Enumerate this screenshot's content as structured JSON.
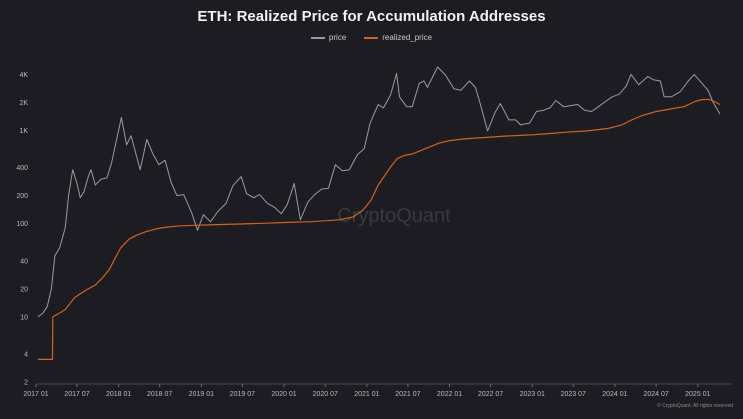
{
  "chart_data": {
    "type": "line",
    "title": "ETH: Realized Price for Accumulation Addresses",
    "y_scale": "log",
    "ylim": [
      2,
      6000
    ],
    "y_ticks": [
      {
        "value": 4000,
        "label": "4K"
      },
      {
        "value": 2000,
        "label": "2K"
      },
      {
        "value": 1000,
        "label": "1K"
      },
      {
        "value": 400,
        "label": "400"
      },
      {
        "value": 200,
        "label": "200"
      },
      {
        "value": 100,
        "label": "100"
      },
      {
        "value": 40,
        "label": "40"
      },
      {
        "value": 20,
        "label": "20"
      },
      {
        "value": 10,
        "label": "10"
      },
      {
        "value": 4,
        "label": "4"
      },
      {
        "value": 2,
        "label": "2"
      }
    ],
    "xlim": [
      "2017-01",
      "2025-06"
    ],
    "x_ticks": [
      {
        "value": "2017-01",
        "label": "2017 01"
      },
      {
        "value": "2017-07",
        "label": "2017 07"
      },
      {
        "value": "2018-01",
        "label": "2018 01"
      },
      {
        "value": "2018-07",
        "label": "2018 07"
      },
      {
        "value": "2019-01",
        "label": "2019 01"
      },
      {
        "value": "2019-07",
        "label": "2019 07"
      },
      {
        "value": "2020-01",
        "label": "2020 01"
      },
      {
        "value": "2020-07",
        "label": "2020 07"
      },
      {
        "value": "2021-01",
        "label": "2021 01"
      },
      {
        "value": "2021-07",
        "label": "2021 07"
      },
      {
        "value": "2022-01",
        "label": "2022 01"
      },
      {
        "value": "2022-07",
        "label": "2022 07"
      },
      {
        "value": "2023-01",
        "label": "2023 01"
      },
      {
        "value": "2023-07",
        "label": "2023 07"
      },
      {
        "value": "2024-01",
        "label": "2024 01"
      },
      {
        "value": "2024-07",
        "label": "2024 07"
      },
      {
        "value": "2025-01",
        "label": "2025 01"
      }
    ],
    "grid": false,
    "legend_position": "top-center",
    "series": [
      {
        "name": "price",
        "color": "#9a9aa0",
        "points": [
          [
            "2017-01-10",
            10
          ],
          [
            "2017-02-01",
            11
          ],
          [
            "2017-02-20",
            13
          ],
          [
            "2017-03-10",
            20
          ],
          [
            "2017-03-25",
            45
          ],
          [
            "2017-04-15",
            55
          ],
          [
            "2017-05-10",
            90
          ],
          [
            "2017-05-25",
            200
          ],
          [
            "2017-06-12",
            380
          ],
          [
            "2017-07-01",
            270
          ],
          [
            "2017-07-15",
            190
          ],
          [
            "2017-08-01",
            220
          ],
          [
            "2017-08-20",
            320
          ],
          [
            "2017-09-01",
            380
          ],
          [
            "2017-09-20",
            260
          ],
          [
            "2017-10-15",
            300
          ],
          [
            "2017-11-10",
            310
          ],
          [
            "2017-12-01",
            450
          ],
          [
            "2017-12-20",
            750
          ],
          [
            "2018-01-13",
            1380
          ],
          [
            "2018-02-05",
            700
          ],
          [
            "2018-02-25",
            880
          ],
          [
            "2018-03-15",
            600
          ],
          [
            "2018-04-06",
            380
          ],
          [
            "2018-05-05",
            800
          ],
          [
            "2018-06-01",
            560
          ],
          [
            "2018-06-28",
            430
          ],
          [
            "2018-07-25",
            480
          ],
          [
            "2018-08-20",
            280
          ],
          [
            "2018-09-15",
            200
          ],
          [
            "2018-10-15",
            205
          ],
          [
            "2018-11-20",
            130
          ],
          [
            "2018-12-15",
            85
          ],
          [
            "2019-01-10",
            125
          ],
          [
            "2019-02-10",
            105
          ],
          [
            "2019-03-15",
            135
          ],
          [
            "2019-04-20",
            165
          ],
          [
            "2019-05-20",
            255
          ],
          [
            "2019-06-26",
            320
          ],
          [
            "2019-07-20",
            210
          ],
          [
            "2019-08-20",
            190
          ],
          [
            "2019-09-15",
            205
          ],
          [
            "2019-10-20",
            165
          ],
          [
            "2019-11-20",
            150
          ],
          [
            "2019-12-20",
            128
          ],
          [
            "2020-01-15",
            160
          ],
          [
            "2020-02-15",
            270
          ],
          [
            "2020-03-13",
            110
          ],
          [
            "2020-04-15",
            170
          ],
          [
            "2020-05-15",
            205
          ],
          [
            "2020-06-15",
            235
          ],
          [
            "2020-07-15",
            240
          ],
          [
            "2020-08-15",
            430
          ],
          [
            "2020-09-15",
            370
          ],
          [
            "2020-10-15",
            380
          ],
          [
            "2020-11-20",
            550
          ],
          [
            "2020-12-20",
            640
          ],
          [
            "2021-01-15",
            1200
          ],
          [
            "2021-02-20",
            1900
          ],
          [
            "2021-03-15",
            1750
          ],
          [
            "2021-04-15",
            2400
          ],
          [
            "2021-05-12",
            4100
          ],
          [
            "2021-05-25",
            2300
          ],
          [
            "2021-06-25",
            1800
          ],
          [
            "2021-07-20",
            1800
          ],
          [
            "2021-08-20",
            3200
          ],
          [
            "2021-09-10",
            3400
          ],
          [
            "2021-09-25",
            2900
          ],
          [
            "2021-11-09",
            4800
          ],
          [
            "2021-12-15",
            3900
          ],
          [
            "2022-01-20",
            2800
          ],
          [
            "2022-02-20",
            2700
          ],
          [
            "2022-03-30",
            3400
          ],
          [
            "2022-04-25",
            2900
          ],
          [
            "2022-05-15",
            2000
          ],
          [
            "2022-06-18",
            990
          ],
          [
            "2022-07-20",
            1550
          ],
          [
            "2022-08-13",
            1950
          ],
          [
            "2022-09-20",
            1300
          ],
          [
            "2022-10-20",
            1300
          ],
          [
            "2022-11-10",
            1150
          ],
          [
            "2022-12-20",
            1200
          ],
          [
            "2023-01-20",
            1600
          ],
          [
            "2023-02-20",
            1650
          ],
          [
            "2023-03-20",
            1750
          ],
          [
            "2023-04-15",
            2100
          ],
          [
            "2023-05-20",
            1800
          ],
          [
            "2023-06-20",
            1850
          ],
          [
            "2023-07-20",
            1900
          ],
          [
            "2023-08-20",
            1650
          ],
          [
            "2023-09-20",
            1600
          ],
          [
            "2023-10-20",
            1800
          ],
          [
            "2023-11-20",
            2050
          ],
          [
            "2023-12-20",
            2300
          ],
          [
            "2024-01-20",
            2450
          ],
          [
            "2024-02-20",
            3000
          ],
          [
            "2024-03-12",
            4000
          ],
          [
            "2024-04-15",
            3100
          ],
          [
            "2024-05-25",
            3800
          ],
          [
            "2024-06-20",
            3500
          ],
          [
            "2024-07-20",
            3400
          ],
          [
            "2024-08-05",
            2300
          ],
          [
            "2024-09-06",
            2300
          ],
          [
            "2024-10-15",
            2600
          ],
          [
            "2024-11-20",
            3400
          ],
          [
            "2024-12-16",
            4000
          ],
          [
            "2025-01-15",
            3300
          ],
          [
            "2025-02-15",
            2700
          ],
          [
            "2025-03-10",
            2000
          ],
          [
            "2025-04-09",
            1500
          ]
        ]
      },
      {
        "name": "realized_price",
        "color": "#d0631f",
        "points": [
          [
            "2017-01-10",
            3.5
          ],
          [
            "2017-03-15",
            3.5
          ],
          [
            "2017-03-16",
            10
          ],
          [
            "2017-04-15",
            11
          ],
          [
            "2017-05-10",
            12
          ],
          [
            "2017-06-01",
            14
          ],
          [
            "2017-06-20",
            16
          ],
          [
            "2017-07-20",
            18
          ],
          [
            "2017-08-20",
            20
          ],
          [
            "2017-09-20",
            22
          ],
          [
            "2017-10-20",
            26
          ],
          [
            "2017-11-20",
            32
          ],
          [
            "2017-12-15",
            42
          ],
          [
            "2018-01-10",
            55
          ],
          [
            "2018-02-15",
            68
          ],
          [
            "2018-03-20",
            75
          ],
          [
            "2018-05-01",
            82
          ],
          [
            "2018-06-15",
            88
          ],
          [
            "2018-08-01",
            92
          ],
          [
            "2018-10-01",
            95
          ],
          [
            "2018-12-01",
            96
          ],
          [
            "2019-02-01",
            97
          ],
          [
            "2019-06-01",
            99
          ],
          [
            "2019-10-01",
            101
          ],
          [
            "2020-01-01",
            103
          ],
          [
            "2020-05-01",
            105
          ],
          [
            "2020-09-01",
            110
          ],
          [
            "2020-11-01",
            118
          ],
          [
            "2020-12-15",
            140
          ],
          [
            "2021-01-20",
            180
          ],
          [
            "2021-02-20",
            260
          ],
          [
            "2021-03-25",
            340
          ],
          [
            "2021-04-20",
            420
          ],
          [
            "2021-05-15",
            500
          ],
          [
            "2021-06-15",
            540
          ],
          [
            "2021-07-20",
            560
          ],
          [
            "2021-08-20",
            600
          ],
          [
            "2021-10-01",
            660
          ],
          [
            "2021-11-15",
            730
          ],
          [
            "2022-01-01",
            780
          ],
          [
            "2022-03-01",
            810
          ],
          [
            "2022-05-01",
            830
          ],
          [
            "2022-07-01",
            850
          ],
          [
            "2022-09-01",
            870
          ],
          [
            "2022-11-01",
            885
          ],
          [
            "2023-01-01",
            900
          ],
          [
            "2023-03-01",
            920
          ],
          [
            "2023-06-01",
            960
          ],
          [
            "2023-09-01",
            990
          ],
          [
            "2023-12-01",
            1050
          ],
          [
            "2024-02-01",
            1150
          ],
          [
            "2024-03-15",
            1300
          ],
          [
            "2024-05-01",
            1450
          ],
          [
            "2024-07-01",
            1600
          ],
          [
            "2024-09-01",
            1700
          ],
          [
            "2024-11-01",
            1800
          ],
          [
            "2024-12-20",
            2050
          ],
          [
            "2025-01-20",
            2150
          ],
          [
            "2025-02-20",
            2150
          ],
          [
            "2025-03-15",
            2050
          ],
          [
            "2025-04-09",
            1900
          ]
        ]
      }
    ]
  },
  "watermark": "CryptoQuant",
  "credit": "© CryptoQuant. All rights reserved"
}
